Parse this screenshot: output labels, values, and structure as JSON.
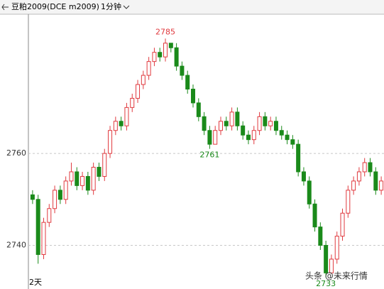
{
  "chart_data": {
    "type": "candlestick",
    "title": "豆粕2009(DCE m2009)",
    "period": "1分钟",
    "x_label": "2天",
    "watermark": "头条 @未来行情",
    "open": [
      2751,
      2750,
      2738,
      2745,
      2748,
      2752,
      2750,
      2754,
      2756,
      2753,
      2755,
      2752,
      2757,
      2755,
      2760,
      2765,
      2767,
      2766,
      2770,
      2772,
      2775,
      2777,
      2780,
      2782,
      2781,
      2784,
      2783,
      2779,
      2777,
      2774,
      2771,
      2768,
      2765,
      2762,
      2765,
      2767,
      2766,
      2769,
      2766,
      2764,
      2763,
      2765,
      2768,
      2766,
      2767,
      2765,
      2764,
      2763,
      2762,
      2756,
      2754,
      2749,
      2744,
      2740,
      2734,
      2737,
      2742,
      2747,
      2752,
      2754,
      2756,
      2758,
      2756,
      2752
    ],
    "high": [
      2752,
      2751,
      2746,
      2749,
      2753,
      2753,
      2755,
      2758,
      2757,
      2756,
      2756,
      2758,
      2758,
      2761,
      2766,
      2768,
      2768,
      2771,
      2773,
      2776,
      2778,
      2781,
      2783,
      2783,
      2785,
      2784,
      2784,
      2780,
      2778,
      2775,
      2772,
      2769,
      2766,
      2766,
      2768,
      2768,
      2770,
      2770,
      2767,
      2765,
      2766,
      2769,
      2769,
      2768,
      2768,
      2766,
      2765,
      2764,
      2763,
      2757,
      2755,
      2750,
      2745,
      2741,
      2738,
      2743,
      2748,
      2753,
      2755,
      2757,
      2759,
      2759,
      2757,
      2755
    ],
    "low": [
      2749,
      2736,
      2737,
      2744,
      2747,
      2749,
      2749,
      2753,
      2752,
      2752,
      2751,
      2751,
      2754,
      2754,
      2759,
      2764,
      2765,
      2765,
      2769,
      2771,
      2774,
      2776,
      2779,
      2780,
      2780,
      2782,
      2778,
      2776,
      2773,
      2770,
      2767,
      2764,
      2761,
      2762,
      2764,
      2765,
      2765,
      2765,
      2763,
      2762,
      2762,
      2764,
      2765,
      2765,
      2764,
      2763,
      2762,
      2761,
      2755,
      2753,
      2748,
      2743,
      2739,
      2733,
      2734,
      2736,
      2741,
      2746,
      2751,
      2753,
      2755,
      2755,
      2751,
      2751
    ],
    "close": [
      2750,
      2738,
      2745,
      2748,
      2752,
      2750,
      2754,
      2756,
      2753,
      2755,
      2752,
      2757,
      2755,
      2760,
      2765,
      2767,
      2766,
      2770,
      2772,
      2775,
      2777,
      2780,
      2782,
      2781,
      2784,
      2783,
      2779,
      2777,
      2774,
      2771,
      2768,
      2765,
      2762,
      2765,
      2767,
      2766,
      2769,
      2766,
      2764,
      2763,
      2765,
      2768,
      2766,
      2767,
      2765,
      2764,
      2763,
      2762,
      2756,
      2754,
      2749,
      2744,
      2740,
      2734,
      2737,
      2742,
      2747,
      2752,
      2754,
      2756,
      2758,
      2756,
      2752,
      2754
    ],
    "up_color": "#e0393e",
    "down_color": "#1a8a1a",
    "ylim": [
      2730.5,
      2790.3
    ],
    "yticks": [
      2740,
      2760
    ],
    "grid": true
  }
}
